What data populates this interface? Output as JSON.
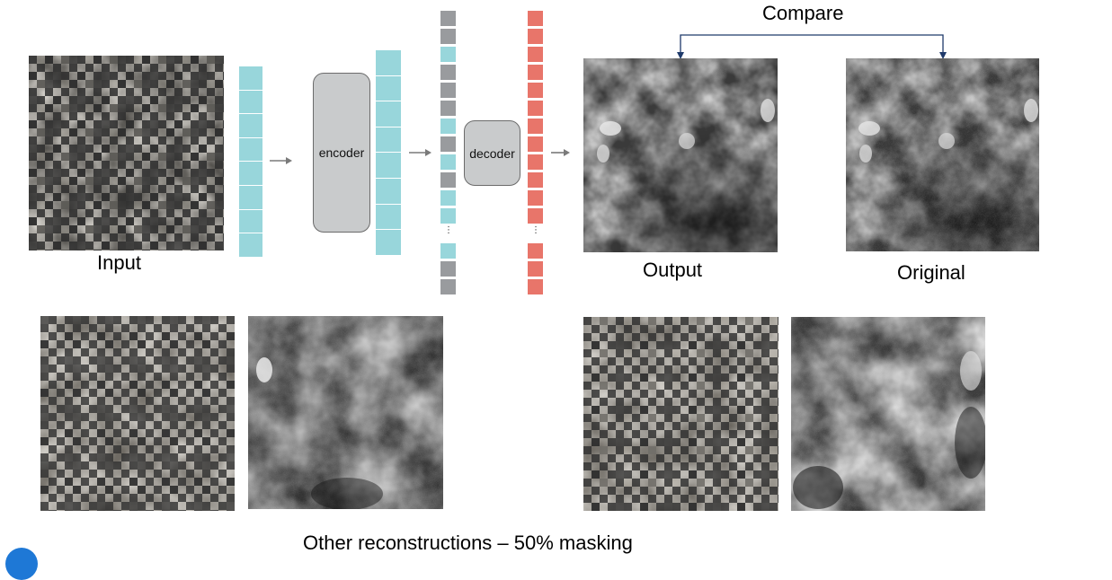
{
  "labels": {
    "compare": "Compare",
    "input": "Input",
    "output": "Output",
    "original": "Original",
    "encoder": "encoder",
    "decoder": "decoder",
    "other": "Other reconstructions – 50% masking",
    "ellipsis": "⋮"
  },
  "colors": {
    "token_visible": "#98d6db",
    "token_masked": "#999b9e",
    "token_decoded": "#e8756a",
    "arrow": "#7a7a7a",
    "compare_arrow": "#1f3a6b",
    "logo": "#1e78d6"
  },
  "icons": {
    "arrow": "right-arrow-icon",
    "logo": "logo-icon"
  },
  "token_sequence": {
    "decoder_input_top": [
      "masked",
      "masked",
      "visible",
      "masked",
      "masked",
      "masked",
      "visible",
      "masked",
      "visible",
      "masked",
      "visible",
      "visible"
    ],
    "decoder_input_bottom": [
      "visible",
      "masked",
      "masked"
    ]
  }
}
